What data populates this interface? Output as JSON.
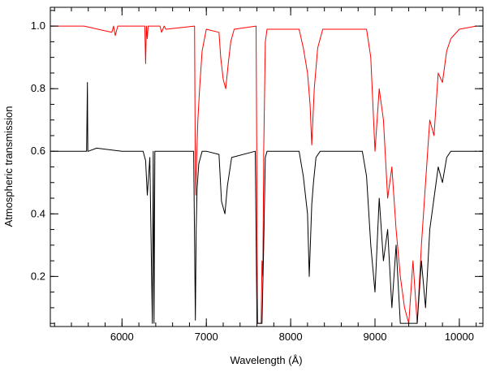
{
  "chart_data": {
    "type": "line",
    "title": "",
    "xlabel": "Wavelength (Å)",
    "ylabel": "Atmospheric transmission",
    "xlim": [
      5150,
      10280
    ],
    "ylim": [
      0.04,
      1.06
    ],
    "x_ticks": [
      6000,
      7000,
      8000,
      9000,
      10000
    ],
    "x_tick_labels": [
      "6000",
      "7000",
      "8000",
      "9000",
      "10000"
    ],
    "y_ticks": [
      0.2,
      0.4,
      0.6,
      0.8,
      1.0
    ],
    "y_tick_labels": [
      "0.2",
      "0.4",
      "0.6",
      "0.8",
      "1.0"
    ],
    "grid": false,
    "legend": "none",
    "series": [
      {
        "color": "#ff0000",
        "x": [
          5150,
          5550,
          5880,
          5900,
          5920,
          5950,
          5980,
          6270,
          6280,
          6290,
          6300,
          6310,
          6450,
          6470,
          6500,
          6520,
          6860,
          6868,
          6875,
          6885,
          6900,
          6920,
          6950,
          7000,
          7150,
          7170,
          7200,
          7230,
          7260,
          7290,
          7330,
          7590,
          7600,
          7605,
          7610,
          7620,
          7630,
          7640,
          7650,
          7660,
          7670,
          7680,
          7700,
          7720,
          7800,
          8100,
          8150,
          8200,
          8230,
          8250,
          8280,
          8320,
          8380,
          8900,
          8950,
          9000,
          9050,
          9100,
          9150,
          9200,
          9250,
          9300,
          9350,
          9400,
          9450,
          9500,
          9550,
          9600,
          9650,
          9700,
          9750,
          9800,
          9850,
          9900,
          10000,
          10200
        ],
        "y": [
          1.0,
          1.0,
          0.98,
          1.0,
          0.97,
          1.0,
          1.0,
          1.0,
          0.88,
          1.0,
          0.96,
          1.0,
          1.0,
          0.98,
          1.0,
          0.99,
          1.0,
          0.6,
          0.46,
          0.58,
          0.7,
          0.8,
          0.92,
          0.99,
          0.98,
          0.9,
          0.83,
          0.8,
          0.88,
          0.95,
          0.99,
          1.0,
          0.45,
          0.15,
          0.05,
          0.05,
          0.05,
          0.05,
          0.05,
          0.25,
          0.2,
          0.6,
          0.95,
          0.99,
          0.99,
          0.99,
          0.93,
          0.85,
          0.75,
          0.62,
          0.8,
          0.93,
          0.99,
          0.99,
          0.9,
          0.6,
          0.8,
          0.7,
          0.45,
          0.55,
          0.35,
          0.2,
          0.1,
          0.05,
          0.25,
          0.05,
          0.3,
          0.5,
          0.7,
          0.65,
          0.85,
          0.82,
          0.92,
          0.96,
          0.99,
          1.0
        ]
      },
      {
        "color": "#000000",
        "x": [
          5180,
          5580,
          5590,
          5595,
          5600,
          5700,
          6000,
          6250,
          6280,
          6300,
          6330,
          6360,
          6370,
          6380,
          6390,
          6400,
          6500,
          6850,
          6870,
          6880,
          6890,
          6910,
          6950,
          7000,
          7150,
          7180,
          7220,
          7250,
          7300,
          7580,
          7600,
          7610,
          7640,
          7660,
          7680,
          7700,
          7720,
          7800,
          8100,
          8150,
          8200,
          8220,
          8250,
          8270,
          8300,
          8350,
          8380,
          8850,
          8900,
          8950,
          9000,
          9050,
          9100,
          9150,
          9200,
          9250,
          9300,
          9350,
          9400,
          9450,
          9500,
          9550,
          9600,
          9650,
          9700,
          9750,
          9800,
          9850,
          9900,
          10000,
          10200
        ],
        "y": [
          0.6,
          0.6,
          0.82,
          0.6,
          0.6,
          0.61,
          0.6,
          0.6,
          0.57,
          0.46,
          0.58,
          0.05,
          0.6,
          0.05,
          0.6,
          0.6,
          0.6,
          0.6,
          0.06,
          0.35,
          0.48,
          0.56,
          0.6,
          0.6,
          0.59,
          0.44,
          0.4,
          0.49,
          0.58,
          0.6,
          0.05,
          0.05,
          0.05,
          0.05,
          0.3,
          0.58,
          0.6,
          0.6,
          0.6,
          0.52,
          0.4,
          0.2,
          0.43,
          0.5,
          0.58,
          0.6,
          0.6,
          0.6,
          0.52,
          0.3,
          0.15,
          0.45,
          0.25,
          0.35,
          0.1,
          0.3,
          0.05,
          0.05,
          0.05,
          0.05,
          0.05,
          0.25,
          0.1,
          0.35,
          0.45,
          0.55,
          0.5,
          0.58,
          0.6,
          0.6,
          0.6
        ]
      }
    ]
  }
}
